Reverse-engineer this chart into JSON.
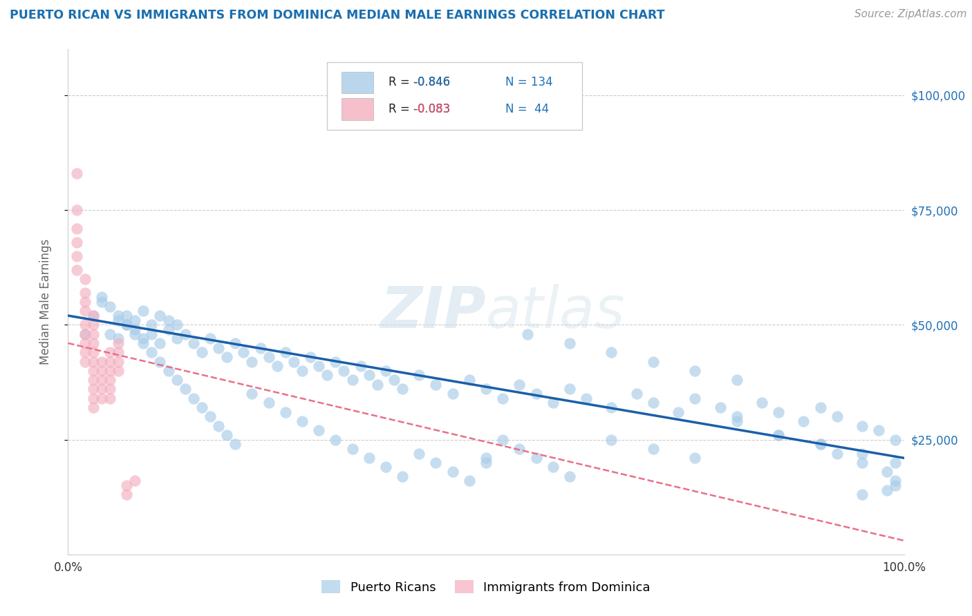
{
  "title": "PUERTO RICAN VS IMMIGRANTS FROM DOMINICA MEDIAN MALE EARNINGS CORRELATION CHART",
  "source_text": "Source: ZipAtlas.com",
  "ylabel": "Median Male Earnings",
  "xlim": [
    0.0,
    1.0
  ],
  "ylim": [
    0,
    110000
  ],
  "ytick_labels": [
    "$25,000",
    "$50,000",
    "$75,000",
    "$100,000"
  ],
  "ytick_values": [
    25000,
    50000,
    75000,
    100000
  ],
  "xtick_labels": [
    "0.0%",
    "100.0%"
  ],
  "xtick_values": [
    0.0,
    1.0
  ],
  "legend_r1": "-0.846",
  "legend_n1": "134",
  "legend_r2": "-0.083",
  "legend_n2": "44",
  "blue_color": "#a8cce8",
  "pink_color": "#f4afc0",
  "blue_line_color": "#1a5fa8",
  "pink_line_color": "#e8708a",
  "title_color": "#1a6faf",
  "axis_label_color": "#666666",
  "tick_color_y": "#2171b5",
  "watermark_color": "#c8dce8",
  "background_color": "#ffffff",
  "blue_scatter_x": [
    0.02,
    0.03,
    0.04,
    0.05,
    0.06,
    0.06,
    0.07,
    0.07,
    0.08,
    0.08,
    0.09,
    0.09,
    0.1,
    0.1,
    0.11,
    0.11,
    0.12,
    0.12,
    0.13,
    0.13,
    0.14,
    0.15,
    0.16,
    0.17,
    0.18,
    0.19,
    0.2,
    0.21,
    0.22,
    0.23,
    0.24,
    0.25,
    0.26,
    0.27,
    0.28,
    0.29,
    0.3,
    0.31,
    0.32,
    0.33,
    0.34,
    0.35,
    0.36,
    0.37,
    0.38,
    0.39,
    0.4,
    0.42,
    0.44,
    0.46,
    0.48,
    0.5,
    0.52,
    0.54,
    0.56,
    0.58,
    0.6,
    0.62,
    0.65,
    0.68,
    0.7,
    0.73,
    0.75,
    0.78,
    0.8,
    0.83,
    0.85,
    0.88,
    0.9,
    0.92,
    0.95,
    0.97,
    0.99,
    0.04,
    0.05,
    0.06,
    0.07,
    0.08,
    0.09,
    0.1,
    0.11,
    0.12,
    0.13,
    0.14,
    0.15,
    0.16,
    0.17,
    0.18,
    0.19,
    0.2,
    0.22,
    0.24,
    0.26,
    0.28,
    0.3,
    0.32,
    0.34,
    0.36,
    0.38,
    0.4,
    0.42,
    0.44,
    0.46,
    0.48,
    0.5,
    0.52,
    0.54,
    0.56,
    0.58,
    0.6,
    0.65,
    0.7,
    0.75,
    0.8,
    0.85,
    0.9,
    0.95,
    0.99,
    0.55,
    0.6,
    0.65,
    0.7,
    0.75,
    0.8,
    0.85,
    0.9,
    0.92,
    0.95,
    0.98,
    0.99,
    0.99,
    0.98,
    0.95,
    0.5
  ],
  "blue_scatter_y": [
    48000,
    52000,
    55000,
    48000,
    51000,
    47000,
    50000,
    52000,
    51000,
    49000,
    53000,
    47000,
    50000,
    48000,
    52000,
    46000,
    49000,
    51000,
    47000,
    50000,
    48000,
    46000,
    44000,
    47000,
    45000,
    43000,
    46000,
    44000,
    42000,
    45000,
    43000,
    41000,
    44000,
    42000,
    40000,
    43000,
    41000,
    39000,
    42000,
    40000,
    38000,
    41000,
    39000,
    37000,
    40000,
    38000,
    36000,
    39000,
    37000,
    35000,
    38000,
    36000,
    34000,
    37000,
    35000,
    33000,
    36000,
    34000,
    32000,
    35000,
    33000,
    31000,
    34000,
    32000,
    30000,
    33000,
    31000,
    29000,
    32000,
    30000,
    28000,
    27000,
    25000,
    56000,
    54000,
    52000,
    50000,
    48000,
    46000,
    44000,
    42000,
    40000,
    38000,
    36000,
    34000,
    32000,
    30000,
    28000,
    26000,
    24000,
    35000,
    33000,
    31000,
    29000,
    27000,
    25000,
    23000,
    21000,
    19000,
    17000,
    22000,
    20000,
    18000,
    16000,
    21000,
    25000,
    23000,
    21000,
    19000,
    17000,
    25000,
    23000,
    21000,
    29000,
    26000,
    24000,
    22000,
    20000,
    48000,
    46000,
    44000,
    42000,
    40000,
    38000,
    26000,
    24000,
    22000,
    20000,
    18000,
    16000,
    15000,
    14000,
    13000,
    20000
  ],
  "pink_scatter_x": [
    0.01,
    0.01,
    0.01,
    0.01,
    0.01,
    0.01,
    0.02,
    0.02,
    0.02,
    0.02,
    0.02,
    0.02,
    0.02,
    0.02,
    0.02,
    0.03,
    0.03,
    0.03,
    0.03,
    0.03,
    0.03,
    0.03,
    0.03,
    0.03,
    0.03,
    0.03,
    0.04,
    0.04,
    0.04,
    0.04,
    0.04,
    0.05,
    0.05,
    0.05,
    0.05,
    0.05,
    0.05,
    0.06,
    0.06,
    0.06,
    0.06,
    0.07,
    0.07,
    0.08
  ],
  "pink_scatter_y": [
    83000,
    75000,
    71000,
    68000,
    65000,
    62000,
    60000,
    57000,
    55000,
    53000,
    50000,
    48000,
    46000,
    44000,
    42000,
    52000,
    50000,
    48000,
    46000,
    44000,
    42000,
    40000,
    38000,
    36000,
    34000,
    32000,
    42000,
    40000,
    38000,
    36000,
    34000,
    44000,
    42000,
    40000,
    38000,
    36000,
    34000,
    46000,
    44000,
    42000,
    40000,
    15000,
    13000,
    16000
  ],
  "blue_line_x": [
    0.0,
    1.0
  ],
  "blue_line_y": [
    52000,
    21000
  ],
  "pink_line_x": [
    0.0,
    1.0
  ],
  "pink_line_y": [
    46000,
    3000
  ]
}
